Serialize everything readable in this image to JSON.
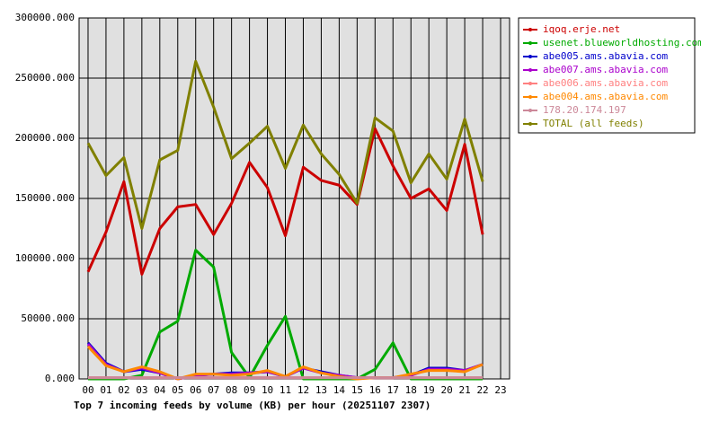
{
  "chart_data": {
    "type": "line",
    "title": "Top 7 incoming feeds by volume (KB) per hour (20251107 2307)",
    "categories": [
      "00",
      "01",
      "02",
      "03",
      "04",
      "05",
      "06",
      "07",
      "08",
      "09",
      "10",
      "11",
      "12",
      "13",
      "14",
      "15",
      "16",
      "17",
      "18",
      "19",
      "20",
      "21",
      "22",
      "23"
    ],
    "ylim": [
      0,
      300000
    ],
    "yticks": [
      {
        "value": 0,
        "label": "0.000"
      },
      {
        "value": 50000,
        "label": "50000.000"
      },
      {
        "value": 100000,
        "label": "100000.000"
      },
      {
        "value": 150000,
        "label": "150000.000"
      },
      {
        "value": 200000,
        "label": "200000.000"
      },
      {
        "value": 250000,
        "label": "250000.000"
      },
      {
        "value": 300000,
        "label": "300000.000"
      }
    ],
    "grid": true,
    "legend": "outside-right",
    "series": [
      {
        "name": "iqoq.erje.net",
        "color": "#cc0000",
        "values": [
          89000,
          122000,
          164000,
          87000,
          125000,
          143000,
          145000,
          120000,
          146000,
          180000,
          159000,
          119000,
          176000,
          165000,
          161000,
          145000,
          208000,
          177000,
          150000,
          158000,
          140000,
          195000,
          120000,
          null
        ]
      },
      {
        "name": "usenet.blueworldhosting.com",
        "color": "#00aa00",
        "values": [
          0,
          0,
          0,
          3000,
          39000,
          48000,
          107000,
          93000,
          22000,
          1000,
          28000,
          52000,
          0,
          0,
          0,
          0,
          8000,
          30000,
          0,
          0,
          0,
          0,
          0,
          null
        ]
      },
      {
        "name": "abe005.ams.abavia.com",
        "color": "#0000cc",
        "values": [
          30000,
          13000,
          6000,
          8000,
          5000,
          0,
          3000,
          4000,
          5000,
          5000,
          6000,
          2000,
          9000,
          6000,
          3000,
          1000,
          1000,
          1000,
          3000,
          9000,
          9000,
          7000,
          12000,
          null
        ]
      },
      {
        "name": "abe007.ams.abavia.com",
        "color": "#aa00cc",
        "values": [
          29000,
          12000,
          6000,
          9000,
          5000,
          0,
          3000,
          4000,
          4000,
          5000,
          6000,
          2000,
          9000,
          5000,
          3000,
          1000,
          1000,
          1000,
          3000,
          8000,
          8000,
          7000,
          12000,
          null
        ]
      },
      {
        "name": "abe006.ams.abavia.com",
        "color": "#ff8080",
        "values": [
          1000,
          1000,
          1000,
          1000,
          1000,
          1000,
          1000,
          1000,
          1000,
          1000,
          1000,
          1000,
          1000,
          1000,
          1000,
          1000,
          1000,
          1000,
          1000,
          1000,
          1000,
          1000,
          1000,
          null
        ]
      },
      {
        "name": "abe004.ams.abavia.com",
        "color": "#ff8800",
        "values": [
          27000,
          11000,
          6000,
          10000,
          6000,
          0,
          4000,
          4000,
          3000,
          4000,
          7000,
          2000,
          10000,
          5000,
          2000,
          0,
          1000,
          1000,
          4000,
          7000,
          7000,
          6000,
          12000,
          null
        ]
      },
      {
        "name": "178.20.174.197",
        "color": "#cc8899",
        "values": [
          1000,
          1000,
          1000,
          1000,
          1000,
          1000,
          1000,
          1000,
          1000,
          1000,
          1000,
          1000,
          1000,
          1000,
          1000,
          1000,
          1000,
          1000,
          1000,
          1000,
          1000,
          1000,
          1000,
          null
        ]
      },
      {
        "name": "TOTAL (all feeds)",
        "color": "#808000",
        "values": [
          196000,
          169000,
          184000,
          125000,
          182000,
          190000,
          264000,
          226000,
          183000,
          196000,
          210000,
          175000,
          211000,
          187000,
          170000,
          146000,
          217000,
          206000,
          163000,
          187000,
          166000,
          216000,
          164000,
          null
        ]
      }
    ]
  }
}
